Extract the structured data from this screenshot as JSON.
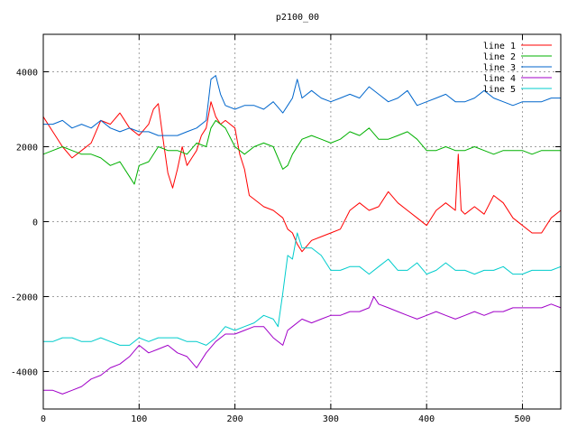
{
  "chart_data": {
    "type": "line",
    "title": "p2100_00",
    "xlabel": "",
    "ylabel": "",
    "xlim": [
      0,
      540
    ],
    "ylim": [
      -5000,
      5000
    ],
    "x_ticks": [
      0,
      100,
      200,
      300,
      400,
      500
    ],
    "y_ticks": [
      -4000,
      -2000,
      0,
      2000,
      4000
    ],
    "grid": true,
    "legend_position": "top-right",
    "series": [
      {
        "name": "line 1",
        "color": "#ff0000",
        "points": [
          [
            0,
            2800
          ],
          [
            10,
            2400
          ],
          [
            20,
            2000
          ],
          [
            30,
            1700
          ],
          [
            40,
            1900
          ],
          [
            50,
            2100
          ],
          [
            60,
            2700
          ],
          [
            70,
            2600
          ],
          [
            80,
            2900
          ],
          [
            90,
            2500
          ],
          [
            100,
            2300
          ],
          [
            110,
            2600
          ],
          [
            115,
            3000
          ],
          [
            120,
            3150
          ],
          [
            125,
            2200
          ],
          [
            130,
            1300
          ],
          [
            135,
            900
          ],
          [
            140,
            1400
          ],
          [
            145,
            2000
          ],
          [
            150,
            1500
          ],
          [
            155,
            1700
          ],
          [
            160,
            1900
          ],
          [
            165,
            2300
          ],
          [
            170,
            2500
          ],
          [
            175,
            3200
          ],
          [
            180,
            2800
          ],
          [
            185,
            2600
          ],
          [
            190,
            2700
          ],
          [
            195,
            2600
          ],
          [
            200,
            2500
          ],
          [
            205,
            1800
          ],
          [
            210,
            1400
          ],
          [
            215,
            700
          ],
          [
            220,
            600
          ],
          [
            230,
            400
          ],
          [
            240,
            300
          ],
          [
            250,
            100
          ],
          [
            255,
            -200
          ],
          [
            260,
            -300
          ],
          [
            265,
            -600
          ],
          [
            270,
            -800
          ],
          [
            280,
            -500
          ],
          [
            290,
            -400
          ],
          [
            300,
            -300
          ],
          [
            310,
            -200
          ],
          [
            320,
            300
          ],
          [
            330,
            500
          ],
          [
            340,
            300
          ],
          [
            350,
            400
          ],
          [
            360,
            800
          ],
          [
            370,
            500
          ],
          [
            380,
            300
          ],
          [
            390,
            100
          ],
          [
            400,
            -100
          ],
          [
            410,
            300
          ],
          [
            420,
            500
          ],
          [
            430,
            300
          ],
          [
            433,
            1800
          ],
          [
            436,
            300
          ],
          [
            440,
            200
          ],
          [
            450,
            400
          ],
          [
            460,
            200
          ],
          [
            470,
            700
          ],
          [
            480,
            500
          ],
          [
            490,
            100
          ],
          [
            500,
            -100
          ],
          [
            510,
            -300
          ],
          [
            520,
            -300
          ],
          [
            530,
            100
          ],
          [
            540,
            300
          ]
        ]
      },
      {
        "name": "line 2",
        "color": "#00b000",
        "points": [
          [
            0,
            1800
          ],
          [
            10,
            1900
          ],
          [
            20,
            2000
          ],
          [
            30,
            1900
          ],
          [
            40,
            1800
          ],
          [
            50,
            1800
          ],
          [
            60,
            1700
          ],
          [
            70,
            1500
          ],
          [
            80,
            1600
          ],
          [
            90,
            1200
          ],
          [
            95,
            1000
          ],
          [
            100,
            1500
          ],
          [
            110,
            1600
          ],
          [
            120,
            2000
          ],
          [
            130,
            1900
          ],
          [
            140,
            1900
          ],
          [
            150,
            1800
          ],
          [
            160,
            2100
          ],
          [
            170,
            2000
          ],
          [
            175,
            2500
          ],
          [
            180,
            2700
          ],
          [
            190,
            2500
          ],
          [
            200,
            2000
          ],
          [
            210,
            1800
          ],
          [
            220,
            2000
          ],
          [
            230,
            2100
          ],
          [
            240,
            2000
          ],
          [
            250,
            1400
          ],
          [
            255,
            1500
          ],
          [
            260,
            1800
          ],
          [
            270,
            2200
          ],
          [
            280,
            2300
          ],
          [
            290,
            2200
          ],
          [
            300,
            2100
          ],
          [
            310,
            2200
          ],
          [
            320,
            2400
          ],
          [
            330,
            2300
          ],
          [
            340,
            2500
          ],
          [
            350,
            2200
          ],
          [
            360,
            2200
          ],
          [
            370,
            2300
          ],
          [
            380,
            2400
          ],
          [
            390,
            2200
          ],
          [
            400,
            1900
          ],
          [
            410,
            1900
          ],
          [
            420,
            2000
          ],
          [
            430,
            1900
          ],
          [
            440,
            1900
          ],
          [
            450,
            2000
          ],
          [
            460,
            1900
          ],
          [
            470,
            1800
          ],
          [
            480,
            1900
          ],
          [
            490,
            1900
          ],
          [
            500,
            1900
          ],
          [
            510,
            1800
          ],
          [
            520,
            1900
          ],
          [
            530,
            1900
          ],
          [
            540,
            1900
          ]
        ]
      },
      {
        "name": "line 3",
        "color": "#0066cc",
        "points": [
          [
            0,
            2600
          ],
          [
            10,
            2600
          ],
          [
            20,
            2700
          ],
          [
            30,
            2500
          ],
          [
            40,
            2600
          ],
          [
            50,
            2500
          ],
          [
            60,
            2700
          ],
          [
            70,
            2500
          ],
          [
            80,
            2400
          ],
          [
            90,
            2500
          ],
          [
            100,
            2400
          ],
          [
            110,
            2400
          ],
          [
            120,
            2300
          ],
          [
            130,
            2300
          ],
          [
            140,
            2300
          ],
          [
            150,
            2400
          ],
          [
            160,
            2500
          ],
          [
            170,
            2700
          ],
          [
            175,
            3800
          ],
          [
            180,
            3900
          ],
          [
            185,
            3400
          ],
          [
            190,
            3100
          ],
          [
            200,
            3000
          ],
          [
            210,
            3100
          ],
          [
            220,
            3100
          ],
          [
            230,
            3000
          ],
          [
            240,
            3200
          ],
          [
            250,
            2900
          ],
          [
            255,
            3100
          ],
          [
            260,
            3300
          ],
          [
            265,
            3800
          ],
          [
            270,
            3300
          ],
          [
            280,
            3500
          ],
          [
            290,
            3300
          ],
          [
            300,
            3200
          ],
          [
            310,
            3300
          ],
          [
            320,
            3400
          ],
          [
            330,
            3300
          ],
          [
            340,
            3600
          ],
          [
            350,
            3400
          ],
          [
            360,
            3200
          ],
          [
            370,
            3300
          ],
          [
            380,
            3500
          ],
          [
            390,
            3100
          ],
          [
            400,
            3200
          ],
          [
            410,
            3300
          ],
          [
            420,
            3400
          ],
          [
            430,
            3200
          ],
          [
            440,
            3200
          ],
          [
            450,
            3300
          ],
          [
            460,
            3500
          ],
          [
            470,
            3300
          ],
          [
            480,
            3200
          ],
          [
            490,
            3100
          ],
          [
            500,
            3200
          ],
          [
            510,
            3200
          ],
          [
            520,
            3200
          ],
          [
            530,
            3300
          ],
          [
            540,
            3300
          ]
        ]
      },
      {
        "name": "line 4",
        "color": "#a000c8",
        "points": [
          [
            0,
            -4500
          ],
          [
            10,
            -4500
          ],
          [
            20,
            -4600
          ],
          [
            30,
            -4500
          ],
          [
            40,
            -4400
          ],
          [
            50,
            -4200
          ],
          [
            60,
            -4100
          ],
          [
            70,
            -3900
          ],
          [
            80,
            -3800
          ],
          [
            90,
            -3600
          ],
          [
            100,
            -3300
          ],
          [
            110,
            -3500
          ],
          [
            120,
            -3400
          ],
          [
            130,
            -3300
          ],
          [
            140,
            -3500
          ],
          [
            150,
            -3600
          ],
          [
            160,
            -3900
          ],
          [
            170,
            -3500
          ],
          [
            180,
            -3200
          ],
          [
            190,
            -3000
          ],
          [
            200,
            -3000
          ],
          [
            210,
            -2900
          ],
          [
            220,
            -2800
          ],
          [
            230,
            -2800
          ],
          [
            240,
            -3100
          ],
          [
            250,
            -3300
          ],
          [
            255,
            -2900
          ],
          [
            260,
            -2800
          ],
          [
            270,
            -2600
          ],
          [
            280,
            -2700
          ],
          [
            290,
            -2600
          ],
          [
            300,
            -2500
          ],
          [
            310,
            -2500
          ],
          [
            320,
            -2400
          ],
          [
            330,
            -2400
          ],
          [
            340,
            -2300
          ],
          [
            345,
            -2000
          ],
          [
            350,
            -2200
          ],
          [
            360,
            -2300
          ],
          [
            370,
            -2400
          ],
          [
            380,
            -2500
          ],
          [
            390,
            -2600
          ],
          [
            400,
            -2500
          ],
          [
            410,
            -2400
          ],
          [
            420,
            -2500
          ],
          [
            430,
            -2600
          ],
          [
            440,
            -2500
          ],
          [
            450,
            -2400
          ],
          [
            460,
            -2500
          ],
          [
            470,
            -2400
          ],
          [
            480,
            -2400
          ],
          [
            490,
            -2300
          ],
          [
            500,
            -2300
          ],
          [
            510,
            -2300
          ],
          [
            520,
            -2300
          ],
          [
            530,
            -2200
          ],
          [
            540,
            -2300
          ]
        ]
      },
      {
        "name": "line 5",
        "color": "#00cccc",
        "points": [
          [
            0,
            -3200
          ],
          [
            10,
            -3200
          ],
          [
            20,
            -3100
          ],
          [
            30,
            -3100
          ],
          [
            40,
            -3200
          ],
          [
            50,
            -3200
          ],
          [
            60,
            -3100
          ],
          [
            70,
            -3200
          ],
          [
            80,
            -3300
          ],
          [
            90,
            -3300
          ],
          [
            100,
            -3100
          ],
          [
            110,
            -3200
          ],
          [
            120,
            -3100
          ],
          [
            130,
            -3100
          ],
          [
            140,
            -3100
          ],
          [
            150,
            -3200
          ],
          [
            160,
            -3200
          ],
          [
            170,
            -3300
          ],
          [
            180,
            -3100
          ],
          [
            190,
            -2800
          ],
          [
            200,
            -2900
          ],
          [
            210,
            -2800
          ],
          [
            220,
            -2700
          ],
          [
            230,
            -2500
          ],
          [
            240,
            -2600
          ],
          [
            245,
            -2800
          ],
          [
            250,
            -1900
          ],
          [
            255,
            -900
          ],
          [
            260,
            -1000
          ],
          [
            265,
            -300
          ],
          [
            270,
            -700
          ],
          [
            280,
            -700
          ],
          [
            290,
            -900
          ],
          [
            300,
            -1300
          ],
          [
            310,
            -1300
          ],
          [
            320,
            -1200
          ],
          [
            330,
            -1200
          ],
          [
            340,
            -1400
          ],
          [
            350,
            -1200
          ],
          [
            360,
            -1000
          ],
          [
            370,
            -1300
          ],
          [
            380,
            -1300
          ],
          [
            390,
            -1100
          ],
          [
            400,
            -1400
          ],
          [
            410,
            -1300
          ],
          [
            420,
            -1100
          ],
          [
            430,
            -1300
          ],
          [
            440,
            -1300
          ],
          [
            450,
            -1400
          ],
          [
            460,
            -1300
          ],
          [
            470,
            -1300
          ],
          [
            480,
            -1200
          ],
          [
            490,
            -1400
          ],
          [
            500,
            -1400
          ],
          [
            510,
            -1300
          ],
          [
            520,
            -1300
          ],
          [
            530,
            -1300
          ],
          [
            540,
            -1200
          ]
        ]
      }
    ]
  }
}
